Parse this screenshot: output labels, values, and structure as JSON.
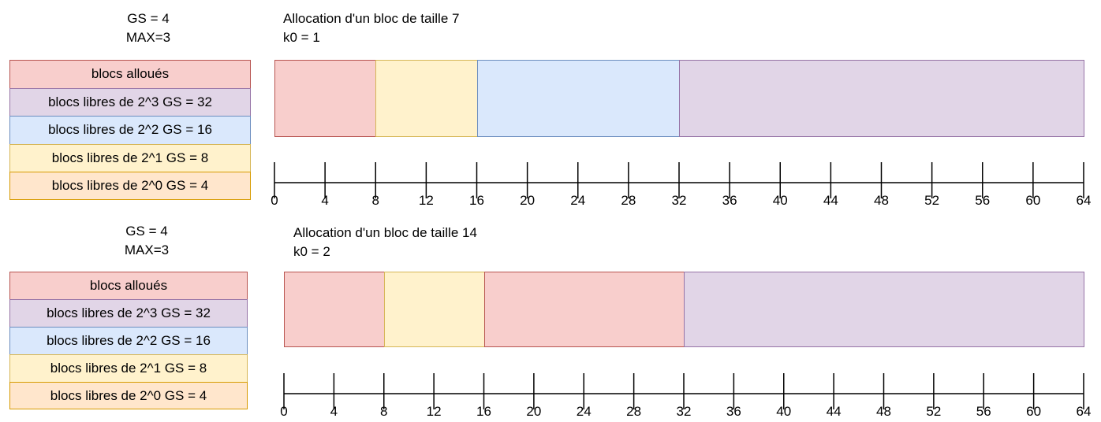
{
  "colors": {
    "alloue": {
      "fill": "#f8cecc",
      "stroke": "#b85450"
    },
    "p3": {
      "fill": "#e1d5e7",
      "stroke": "#9673a6"
    },
    "p2": {
      "fill": "#dae8fc",
      "stroke": "#6c8ebf"
    },
    "p1": {
      "fill": "#fff2cc",
      "stroke": "#d6b656"
    },
    "p0": {
      "fill": "#ffe6cc",
      "stroke": "#d79b00"
    }
  },
  "legend": [
    {
      "key": "alloue",
      "label": "blocs alloués"
    },
    {
      "key": "p3",
      "label": "blocs libres de 2^3 GS = 32"
    },
    {
      "key": "p2",
      "label": "blocs libres de 2^2 GS = 16"
    },
    {
      "key": "p1",
      "label": "blocs libres de 2^1 GS = 8"
    },
    {
      "key": "p0",
      "label": "blocs libres de 2^0 GS = 4"
    }
  ],
  "scale": {
    "min": 0,
    "max": 64,
    "step": 4
  },
  "panels": [
    {
      "gs": "GS = 4",
      "max": "MAX=3",
      "title": "Allocation d'un bloc de taille 7",
      "k0": "k0 = 1",
      "blocks": [
        {
          "start": 0,
          "end": 8,
          "key": "alloue"
        },
        {
          "start": 8,
          "end": 16,
          "key": "p1"
        },
        {
          "start": 16,
          "end": 32,
          "key": "p2"
        },
        {
          "start": 32,
          "end": 64,
          "key": "p3"
        }
      ]
    },
    {
      "gs": "GS = 4",
      "max": "MAX=3",
      "title": "Allocation d'un bloc de taille 14",
      "k0": "k0 = 2",
      "blocks": [
        {
          "start": 0,
          "end": 8,
          "key": "alloue"
        },
        {
          "start": 8,
          "end": 16,
          "key": "p1"
        },
        {
          "start": 16,
          "end": 32,
          "key": "alloue"
        },
        {
          "start": 32,
          "end": 64,
          "key": "p3"
        }
      ]
    }
  ]
}
